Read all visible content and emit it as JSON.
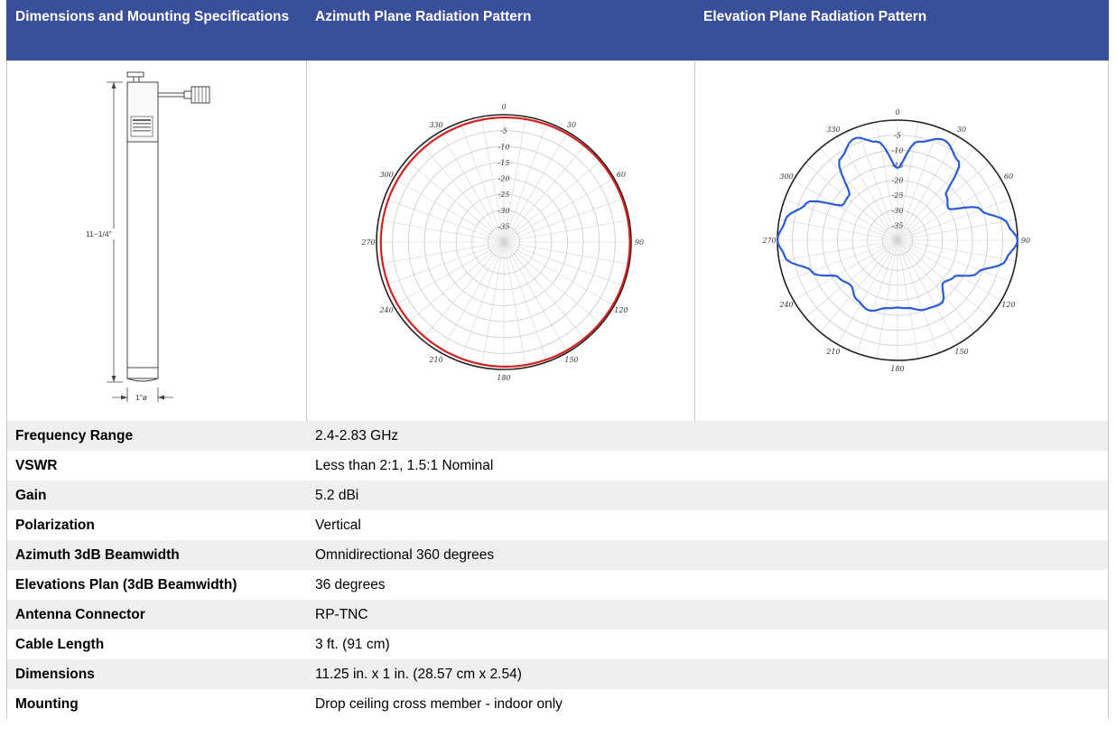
{
  "header": {
    "col1": "Dimensions and Mounting Specifications",
    "col2": "Azimuth Plane Radiation Pattern",
    "col3": "Elevation Plane Radiation Pattern"
  },
  "drawing": {
    "height_label": "11−1/4\"",
    "diameter_label": "1\"ø"
  },
  "azimuth_chart": {
    "angle_labels": [
      "0",
      "30",
      "60",
      "90",
      "120",
      "150",
      "180",
      "210",
      "240",
      "270",
      "300",
      "330"
    ],
    "ring_labels": [
      "-5",
      "-10",
      "-15",
      "-20",
      "-25",
      "-30",
      "-35"
    ],
    "trace_color": "#d42020"
  },
  "elevation_chart": {
    "angle_labels": [
      "0",
      "30",
      "60",
      "90",
      "120",
      "150",
      "180",
      "210",
      "240",
      "270",
      "300",
      "330"
    ],
    "ring_labels": [
      "-5",
      "-10",
      "-15",
      "-20",
      "-25",
      "-30",
      "-35"
    ],
    "trace_color": "#2a5bd7"
  },
  "specs": [
    {
      "label": "Frequency Range",
      "value": "2.4-2.83 GHz"
    },
    {
      "label": "VSWR",
      "value": "Less than 2:1, 1.5:1 Nominal"
    },
    {
      "label": "Gain",
      "value": "5.2 dBi"
    },
    {
      "label": "Polarization",
      "value": "Vertical"
    },
    {
      "label": "Azimuth 3dB Beamwidth",
      "value": "Omnidirectional 360 degrees"
    },
    {
      "label": "Elevations Plan (3dB Beamwidth)",
      "value": "36 degrees"
    },
    {
      "label": "Antenna Connector",
      "value": "RP-TNC"
    },
    {
      "label": "Cable Length",
      "value": "3 ft. (91 cm)"
    },
    {
      "label": "Dimensions",
      "value": "11.25 in. x 1 in. (28.57 cm x 2.54)"
    },
    {
      "label": "Mounting",
      "value": "Drop ceiling cross member - indoor only"
    }
  ]
}
